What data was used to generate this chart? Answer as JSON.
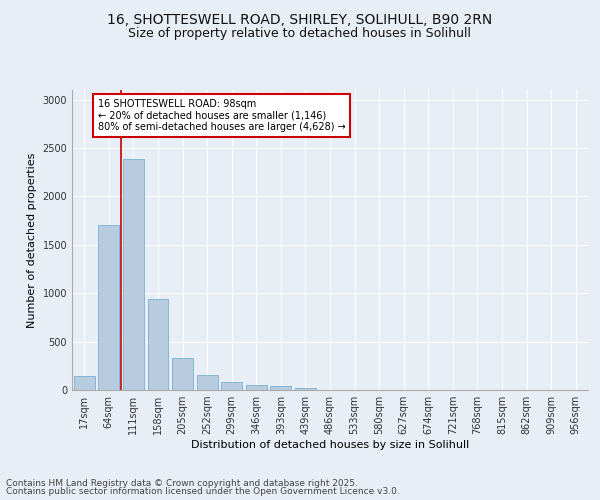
{
  "title_line1": "16, SHOTTESWELL ROAD, SHIRLEY, SOLIHULL, B90 2RN",
  "title_line2": "Size of property relative to detached houses in Solihull",
  "xlabel": "Distribution of detached houses by size in Solihull",
  "ylabel": "Number of detached properties",
  "categories": [
    "17sqm",
    "64sqm",
    "111sqm",
    "158sqm",
    "205sqm",
    "252sqm",
    "299sqm",
    "346sqm",
    "393sqm",
    "439sqm",
    "486sqm",
    "533sqm",
    "580sqm",
    "627sqm",
    "674sqm",
    "721sqm",
    "768sqm",
    "815sqm",
    "862sqm",
    "909sqm",
    "956sqm"
  ],
  "values": [
    140,
    1710,
    2390,
    940,
    330,
    155,
    85,
    55,
    40,
    20,
    5,
    0,
    0,
    0,
    0,
    0,
    0,
    0,
    0,
    0,
    0
  ],
  "bar_color": "#b8ccdf",
  "bar_edge_color": "#7aafd4",
  "vline_color": "#cc0000",
  "annotation_text": "16 SHOTTESWELL ROAD: 98sqm\n← 20% of detached houses are smaller (1,146)\n80% of semi-detached houses are larger (4,628) →",
  "annotation_box_color": "#ffffff",
  "annotation_box_edge_color": "#cc0000",
  "ylim": [
    0,
    3100
  ],
  "yticks": [
    0,
    500,
    1000,
    1500,
    2000,
    2500,
    3000
  ],
  "background_color": "#e8eef5",
  "plot_bg_color": "#e8eef5",
  "grid_color": "#ffffff",
  "footer_line1": "Contains HM Land Registry data © Crown copyright and database right 2025.",
  "footer_line2": "Contains public sector information licensed under the Open Government Licence v3.0.",
  "title_fontsize": 10,
  "subtitle_fontsize": 9,
  "label_fontsize": 8,
  "tick_fontsize": 7,
  "annotation_fontsize": 7,
  "footer_fontsize": 6.5
}
